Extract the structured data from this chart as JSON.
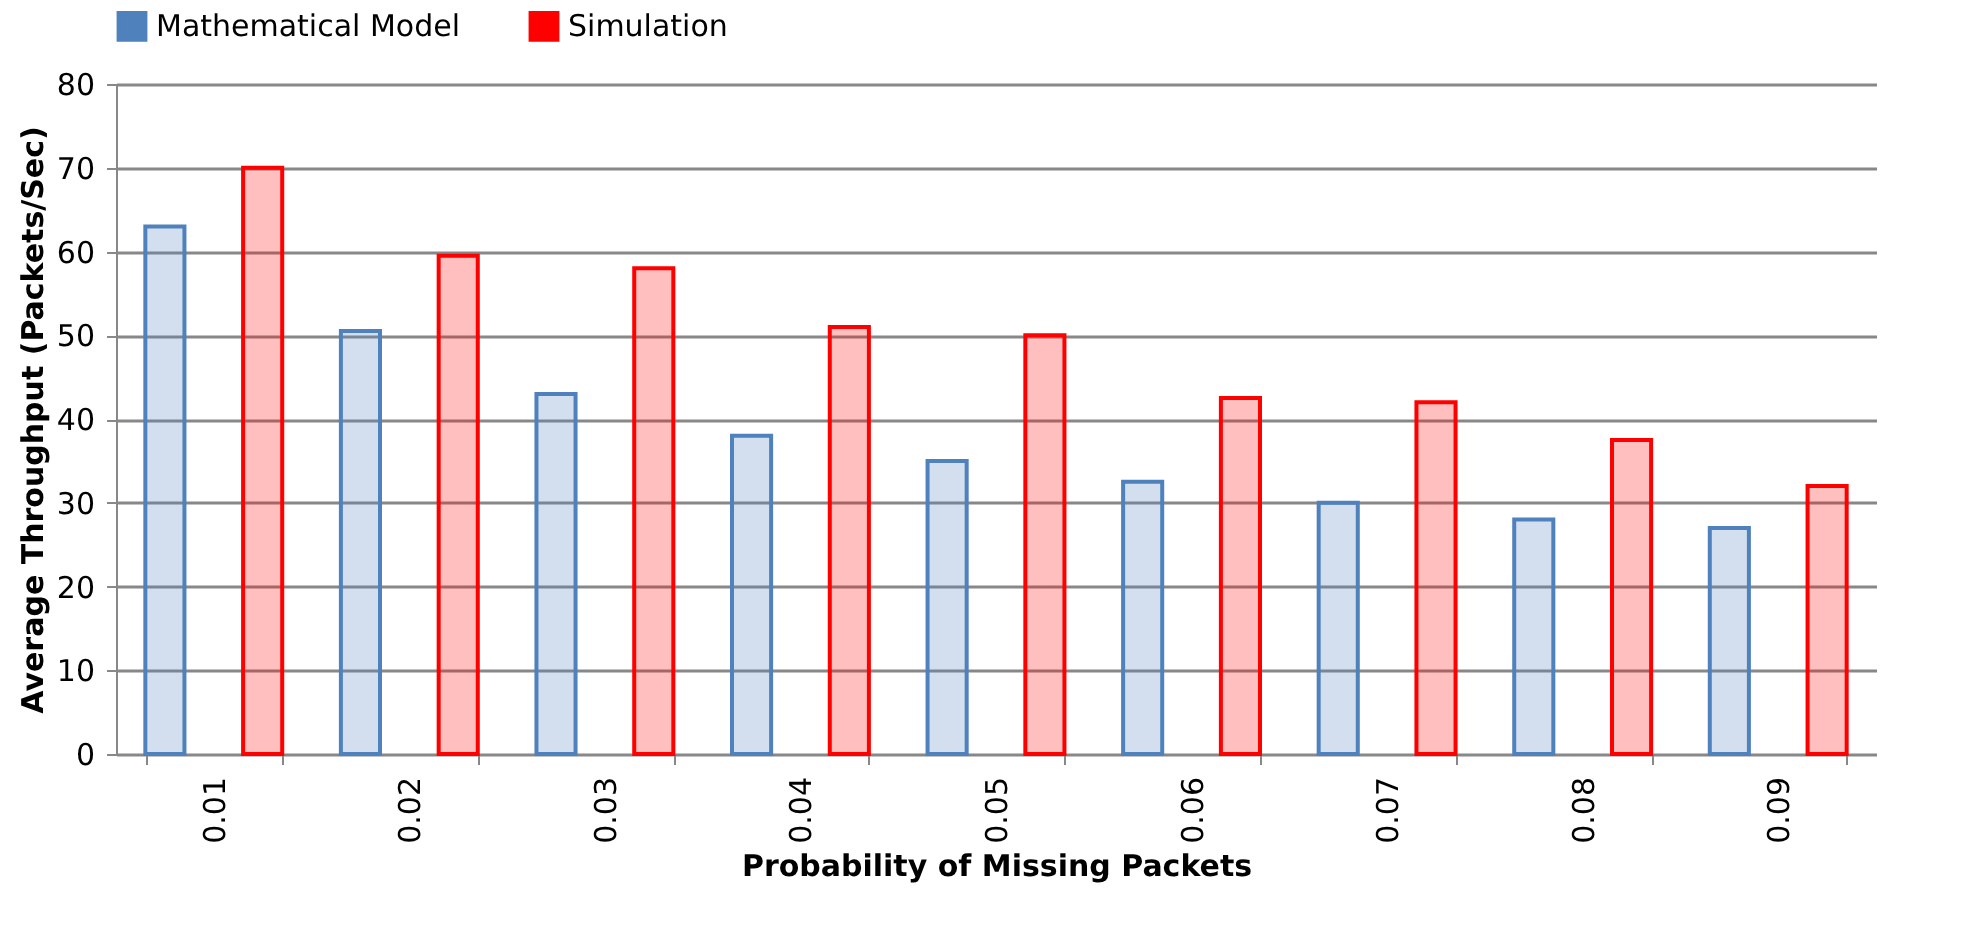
{
  "chart_data": {
    "type": "bar",
    "xlabel": "Probability of Missing Packets",
    "ylabel": "Average Throughput (Packets/Sec)",
    "categories": [
      "0.01",
      "0.02",
      "0.03",
      "0.04",
      "0.05",
      "0.06",
      "0.07",
      "0.08",
      "0.09"
    ],
    "series": [
      {
        "name": "Mathematical Model",
        "color": "#4f81bd",
        "values": [
          63,
          50.5,
          43,
          38,
          35,
          32.5,
          30,
          28,
          27
        ]
      },
      {
        "name": "Simulation",
        "color": "#ff0000",
        "values": [
          70,
          59.5,
          58,
          51,
          50,
          42.5,
          42,
          37.5,
          32
        ]
      }
    ],
    "ylim": [
      0,
      80
    ],
    "yticks": [
      0,
      10,
      20,
      30,
      40,
      50,
      60,
      70,
      80
    ],
    "grid": "y",
    "legend": "top"
  }
}
